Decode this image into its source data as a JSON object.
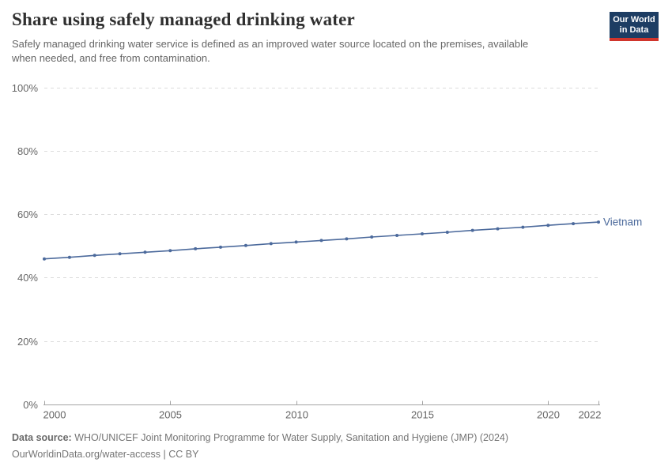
{
  "header": {
    "title": "Share using safely managed drinking water",
    "subtitle": "Safely managed drinking water service is defined as an improved water source located on the premises, available when needed, and free from contamination.",
    "logo": {
      "line1": "Our World",
      "line2": "in Data",
      "background_color": "#1d3d63",
      "bar_color": "#d0352c"
    }
  },
  "chart_data": {
    "type": "line",
    "title": "Share using safely managed drinking water",
    "xlabel": "",
    "ylabel": "",
    "ylim": [
      0,
      100
    ],
    "y_ticks": [
      0,
      20,
      40,
      60,
      80,
      100
    ],
    "y_tick_suffix": "%",
    "x_ticks": [
      2000,
      2005,
      2010,
      2015,
      2020,
      2022
    ],
    "grid": "horizontal-dashed",
    "legend_position": "end-of-line-label",
    "x": [
      2000,
      2001,
      2002,
      2003,
      2004,
      2005,
      2006,
      2007,
      2008,
      2009,
      2010,
      2011,
      2012,
      2013,
      2014,
      2015,
      2016,
      2017,
      2018,
      2019,
      2020,
      2021,
      2022
    ],
    "series": [
      {
        "name": "Vietnam",
        "color": "#4c6a9c",
        "values": [
          45.9,
          46.4,
          47.0,
          47.5,
          48.0,
          48.5,
          49.1,
          49.6,
          50.1,
          50.7,
          51.2,
          51.7,
          52.2,
          52.8,
          53.3,
          53.8,
          54.3,
          54.9,
          55.4,
          55.9,
          56.5,
          57.0,
          57.5
        ]
      }
    ]
  },
  "footer": {
    "datasource_label": "Data source:",
    "datasource_text": " WHO/UNICEF Joint Monitoring Programme for Water Supply, Sanitation and Hygiene (JMP) (2024)",
    "url": "OurWorldinData.org/water-access",
    "divider": " | ",
    "license": "CC BY"
  }
}
